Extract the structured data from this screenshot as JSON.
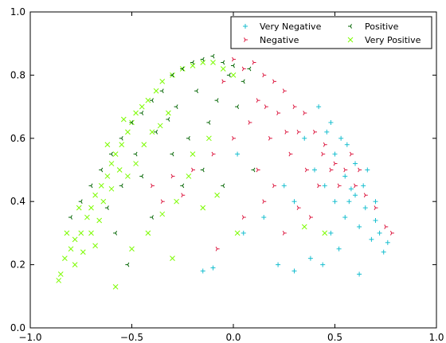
{
  "chart_data": {
    "type": "scatter",
    "title": "",
    "xlabel": "",
    "ylabel": "",
    "xlim": [
      -1.0,
      1.0
    ],
    "ylim": [
      0.0,
      1.0
    ],
    "xticks": [
      -1.0,
      -0.5,
      0.0,
      0.5,
      1.0
    ],
    "yticks": [
      0.0,
      0.2,
      0.4,
      0.6,
      0.8,
      1.0
    ],
    "xtick_labels": [
      "−1.0",
      "−0.5",
      "0.0",
      "0.5",
      "1.0"
    ],
    "ytick_labels": [
      "0.0",
      "0.2",
      "0.4",
      "0.6",
      "0.8",
      "1.0"
    ],
    "grid": false,
    "legend": {
      "location": "top-right",
      "columns": 2
    },
    "series": [
      {
        "name": "Very Negative",
        "color": "#17becf",
        "marker": "plus",
        "points": [
          [
            0.42,
            0.7
          ],
          [
            0.46,
            0.62
          ],
          [
            0.5,
            0.55
          ],
          [
            0.55,
            0.48
          ],
          [
            0.6,
            0.42
          ],
          [
            0.65,
            0.38
          ],
          [
            0.7,
            0.34
          ],
          [
            0.72,
            0.3
          ],
          [
            0.76,
            0.27
          ],
          [
            0.5,
            0.4
          ],
          [
            0.55,
            0.35
          ],
          [
            0.45,
            0.45
          ],
          [
            0.62,
            0.32
          ],
          [
            0.68,
            0.28
          ],
          [
            0.58,
            0.44
          ],
          [
            0.4,
            0.5
          ],
          [
            0.35,
            0.6
          ],
          [
            0.48,
            0.3
          ],
          [
            0.52,
            0.25
          ],
          [
            0.64,
            0.45
          ],
          [
            0.7,
            0.4
          ],
          [
            0.66,
            0.5
          ],
          [
            0.6,
            0.52
          ],
          [
            0.56,
            0.58
          ],
          [
            0.3,
            0.18
          ],
          [
            0.22,
            0.2
          ],
          [
            -0.15,
            0.18
          ],
          [
            -0.1,
            0.19
          ],
          [
            0.05,
            0.3
          ],
          [
            0.15,
            0.35
          ],
          [
            0.02,
            0.55
          ],
          [
            0.38,
            0.22
          ],
          [
            0.44,
            0.2
          ],
          [
            0.74,
            0.24
          ],
          [
            0.62,
            0.17
          ],
          [
            0.3,
            0.4
          ],
          [
            0.25,
            0.45
          ],
          [
            0.48,
            0.65
          ],
          [
            0.53,
            0.6
          ],
          [
            0.57,
            0.4
          ]
        ]
      },
      {
        "name": "Negative",
        "color": "#dc143c",
        "marker": "tri-right",
        "points": [
          [
            0.1,
            0.84
          ],
          [
            0.15,
            0.8
          ],
          [
            0.2,
            0.78
          ],
          [
            0.25,
            0.75
          ],
          [
            0.3,
            0.7
          ],
          [
            0.35,
            0.68
          ],
          [
            0.4,
            0.62
          ],
          [
            0.45,
            0.58
          ],
          [
            0.5,
            0.52
          ],
          [
            0.55,
            0.5
          ],
          [
            0.6,
            0.45
          ],
          [
            0.65,
            0.42
          ],
          [
            0.7,
            0.38
          ],
          [
            0.75,
            0.32
          ],
          [
            0.78,
            0.3
          ],
          [
            0.05,
            0.82
          ],
          [
            0.0,
            0.85
          ],
          [
            -0.05,
            0.78
          ],
          [
            0.12,
            0.72
          ],
          [
            0.22,
            0.68
          ],
          [
            0.32,
            0.62
          ],
          [
            0.28,
            0.55
          ],
          [
            0.18,
            0.6
          ],
          [
            0.08,
            0.65
          ],
          [
            0.36,
            0.5
          ],
          [
            0.42,
            0.45
          ],
          [
            0.2,
            0.45
          ],
          [
            0.12,
            0.5
          ],
          [
            0.0,
            0.6
          ],
          [
            -0.1,
            0.55
          ],
          [
            -0.2,
            0.5
          ],
          [
            -0.3,
            0.48
          ],
          [
            -0.4,
            0.45
          ],
          [
            -0.25,
            0.42
          ],
          [
            -0.35,
            0.4
          ],
          [
            0.25,
            0.3
          ],
          [
            0.15,
            0.4
          ],
          [
            0.05,
            0.35
          ],
          [
            -0.08,
            0.25
          ],
          [
            0.32,
            0.38
          ],
          [
            0.38,
            0.35
          ],
          [
            0.44,
            0.55
          ],
          [
            0.48,
            0.5
          ],
          [
            0.52,
            0.45
          ],
          [
            0.58,
            0.55
          ],
          [
            0.62,
            0.5
          ],
          [
            0.26,
            0.62
          ],
          [
            0.16,
            0.7
          ]
        ]
      },
      {
        "name": "Positive",
        "color": "#006400",
        "marker": "tri-left",
        "points": [
          [
            -0.3,
            0.8
          ],
          [
            -0.25,
            0.82
          ],
          [
            -0.2,
            0.84
          ],
          [
            -0.15,
            0.85
          ],
          [
            -0.1,
            0.86
          ],
          [
            -0.05,
            0.84
          ],
          [
            0.0,
            0.83
          ],
          [
            0.05,
            0.78
          ],
          [
            -0.35,
            0.75
          ],
          [
            -0.4,
            0.72
          ],
          [
            -0.45,
            0.68
          ],
          [
            -0.5,
            0.65
          ],
          [
            -0.55,
            0.6
          ],
          [
            -0.6,
            0.55
          ],
          [
            -0.65,
            0.5
          ],
          [
            -0.7,
            0.45
          ],
          [
            -0.75,
            0.4
          ],
          [
            -0.8,
            0.35
          ],
          [
            -0.28,
            0.7
          ],
          [
            -0.18,
            0.75
          ],
          [
            -0.08,
            0.72
          ],
          [
            0.02,
            0.7
          ],
          [
            -0.38,
            0.62
          ],
          [
            -0.22,
            0.6
          ],
          [
            -0.12,
            0.65
          ],
          [
            -0.3,
            0.55
          ],
          [
            -0.48,
            0.55
          ],
          [
            -0.55,
            0.45
          ],
          [
            -0.45,
            0.48
          ],
          [
            -0.62,
            0.38
          ],
          [
            -0.58,
            0.3
          ],
          [
            -0.52,
            0.2
          ],
          [
            -0.4,
            0.35
          ],
          [
            -0.15,
            0.5
          ],
          [
            -0.05,
            0.45
          ],
          [
            0.1,
            0.5
          ],
          [
            -0.25,
            0.45
          ],
          [
            -0.02,
            0.8
          ],
          [
            0.08,
            0.82
          ],
          [
            -0.32,
            0.66
          ]
        ]
      },
      {
        "name": "Very Positive",
        "color": "#7cfc00",
        "marker": "x",
        "points": [
          [
            -0.86,
            0.15
          ],
          [
            -0.85,
            0.17
          ],
          [
            -0.83,
            0.22
          ],
          [
            -0.8,
            0.25
          ],
          [
            -0.78,
            0.28
          ],
          [
            -0.75,
            0.3
          ],
          [
            -0.72,
            0.35
          ],
          [
            -0.7,
            0.38
          ],
          [
            -0.68,
            0.42
          ],
          [
            -0.65,
            0.45
          ],
          [
            -0.62,
            0.48
          ],
          [
            -0.6,
            0.52
          ],
          [
            -0.58,
            0.55
          ],
          [
            -0.55,
            0.58
          ],
          [
            -0.52,
            0.62
          ],
          [
            -0.5,
            0.65
          ],
          [
            -0.48,
            0.68
          ],
          [
            -0.45,
            0.7
          ],
          [
            -0.42,
            0.72
          ],
          [
            -0.38,
            0.75
          ],
          [
            -0.35,
            0.78
          ],
          [
            -0.3,
            0.8
          ],
          [
            -0.25,
            0.82
          ],
          [
            -0.2,
            0.83
          ],
          [
            -0.15,
            0.84
          ],
          [
            -0.1,
            0.84
          ],
          [
            -0.05,
            0.82
          ],
          [
            0.0,
            0.8
          ],
          [
            -0.76,
            0.38
          ],
          [
            -0.7,
            0.3
          ],
          [
            -0.66,
            0.34
          ],
          [
            -0.64,
            0.4
          ],
          [
            -0.6,
            0.44
          ],
          [
            -0.56,
            0.5
          ],
          [
            -0.52,
            0.48
          ],
          [
            -0.48,
            0.52
          ],
          [
            -0.44,
            0.58
          ],
          [
            -0.4,
            0.62
          ],
          [
            -0.36,
            0.64
          ],
          [
            -0.32,
            0.68
          ],
          [
            -0.82,
            0.3
          ],
          [
            -0.78,
            0.2
          ],
          [
            -0.74,
            0.24
          ],
          [
            -0.68,
            0.26
          ],
          [
            -0.58,
            0.13
          ],
          [
            -0.3,
            0.22
          ],
          [
            -0.28,
            0.4
          ],
          [
            -0.22,
            0.48
          ],
          [
            -0.15,
            0.38
          ],
          [
            -0.08,
            0.42
          ],
          [
            0.02,
            0.3
          ],
          [
            0.45,
            0.3
          ],
          [
            0.35,
            0.32
          ],
          [
            -0.5,
            0.25
          ],
          [
            -0.42,
            0.3
          ],
          [
            -0.35,
            0.36
          ],
          [
            -0.2,
            0.55
          ],
          [
            -0.12,
            0.6
          ],
          [
            -0.62,
            0.58
          ],
          [
            -0.54,
            0.66
          ]
        ]
      }
    ]
  }
}
